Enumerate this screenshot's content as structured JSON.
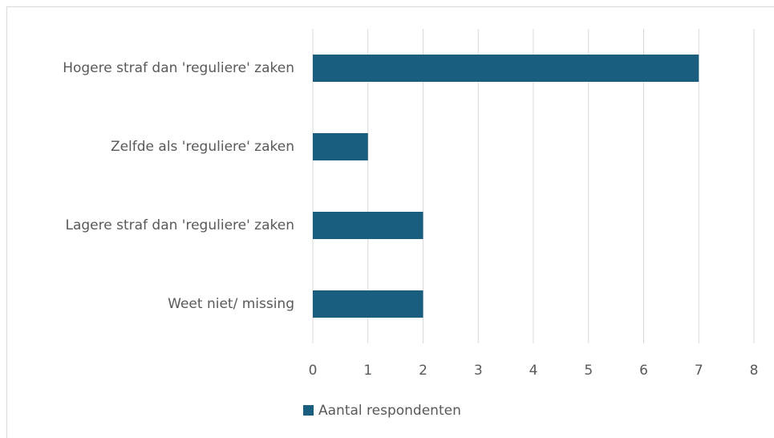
{
  "chart_data": {
    "type": "barh",
    "categories": [
      "Hogere straf dan 'reguliere' zaken",
      "Zelfde als 'reguliere' zaken",
      "Lagere straf dan 'reguliere' zaken",
      "Weet niet/ missing"
    ],
    "series": [
      {
        "name": "Aantal respondenten",
        "color": "#195e7e",
        "values": [
          7,
          1,
          2,
          2
        ]
      }
    ],
    "xlim": [
      0,
      8
    ],
    "xticks": [
      0,
      1,
      2,
      3,
      4,
      5,
      6,
      7,
      8
    ],
    "grid": true,
    "legend": "bottom"
  }
}
